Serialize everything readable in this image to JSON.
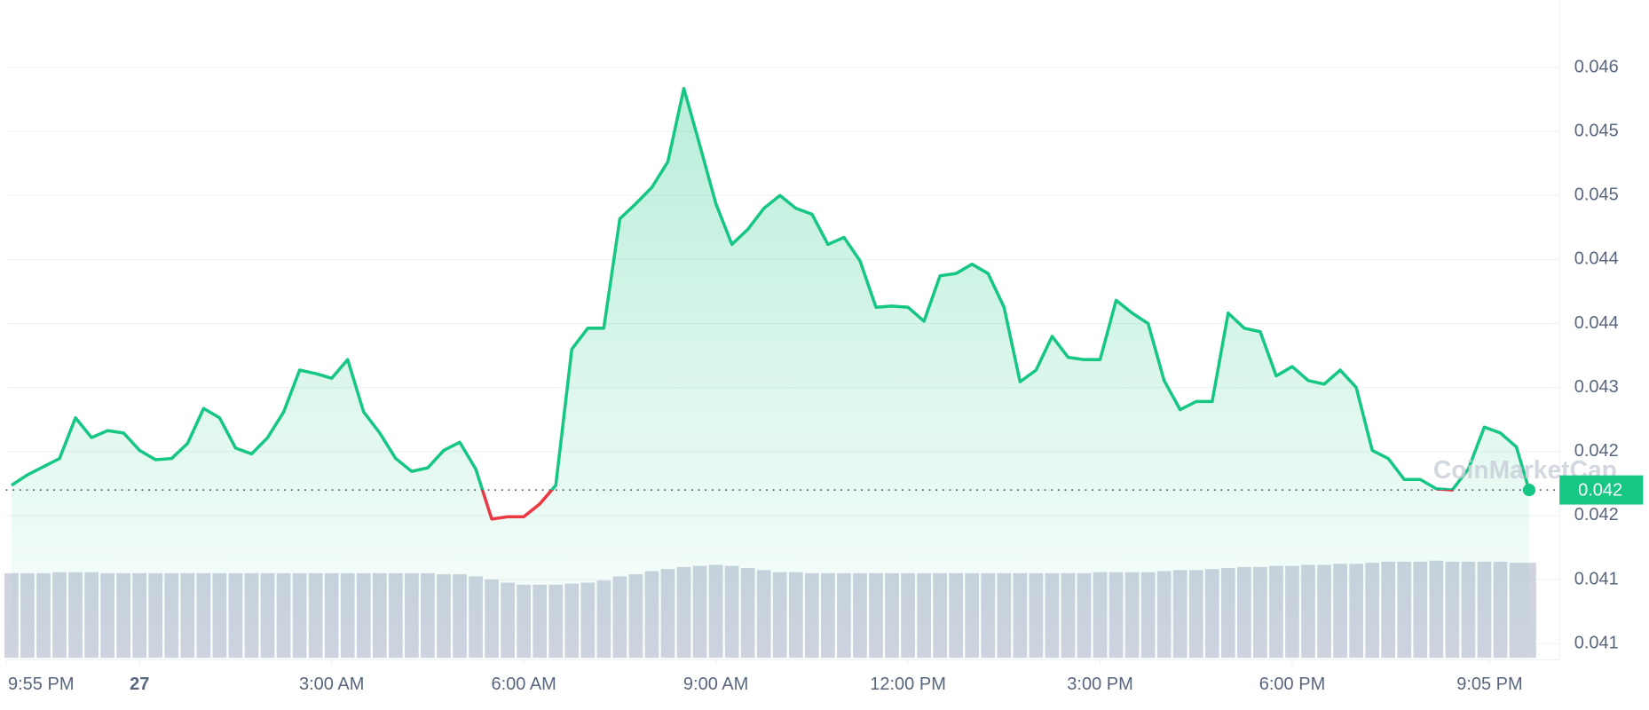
{
  "chart_data": {
    "type": "line",
    "watermark": "CoinMarketCap",
    "x": [
      -2,
      -1.75,
      -1.5,
      -1.25,
      -1,
      -0.75,
      -0.5,
      -0.25,
      0,
      0.25,
      0.5,
      0.75,
      1,
      1.25,
      1.5,
      1.75,
      2,
      2.25,
      2.5,
      2.75,
      3,
      3.25,
      3.5,
      3.75,
      4,
      4.25,
      4.5,
      4.75,
      5,
      5.25,
      5.5,
      5.75,
      6,
      6.25,
      6.5,
      6.75,
      7,
      7.25,
      7.5,
      7.75,
      8,
      8.25,
      8.5,
      8.75,
      9,
      9.25,
      9.5,
      9.75,
      10,
      10.25,
      10.5,
      10.75,
      11,
      11.25,
      11.5,
      11.75,
      12,
      12.25,
      12.5,
      12.75,
      13,
      13.25,
      13.5,
      13.75,
      14,
      14.25,
      14.5,
      14.75,
      15,
      15.25,
      15.5,
      15.75,
      16,
      16.25,
      16.5,
      16.75,
      17,
      17.25,
      17.5,
      17.75,
      18,
      18.25,
      18.5,
      18.75,
      19,
      19.25,
      19.5,
      19.75,
      20,
      20.25,
      20.5,
      20.75,
      21,
      21.25,
      21.5,
      21.7
    ],
    "series": [
      {
        "values": [
          0.04219,
          0.04228,
          0.04235,
          0.04242,
          0.04277,
          0.0426,
          0.04266,
          0.04264,
          0.04249,
          0.04241,
          0.04242,
          0.04255,
          0.04285,
          0.04277,
          0.04251,
          0.04246,
          0.0426,
          0.04282,
          0.04318,
          0.04315,
          0.04311,
          0.04327,
          0.04282,
          0.04264,
          0.04242,
          0.04231,
          0.04234,
          0.04249,
          0.04256,
          0.04233,
          0.0419,
          0.04192,
          0.04192,
          0.04203,
          0.04219,
          0.04336,
          0.04354,
          0.04354,
          0.04448,
          0.04461,
          0.04475,
          0.04497,
          0.0456,
          0.04511,
          0.04461,
          0.04426,
          0.04439,
          0.04457,
          0.04468,
          0.04457,
          0.04452,
          0.04426,
          0.04432,
          0.04412,
          0.04372,
          0.04373,
          0.04372,
          0.0436,
          0.04399,
          0.04401,
          0.04409,
          0.04401,
          0.04372,
          0.04308,
          0.04318,
          0.04347,
          0.04329,
          0.04327,
          0.04327,
          0.04378,
          0.04367,
          0.04358,
          0.04309,
          0.04284,
          0.04291,
          0.04291,
          0.04367,
          0.04354,
          0.04351,
          0.04313,
          0.04321,
          0.04309,
          0.04306,
          0.04318,
          0.04303,
          0.04249,
          0.04242,
          0.04224,
          0.04224,
          0.04216,
          0.04215,
          0.04233,
          0.04269,
          0.04264,
          0.04252,
          0.04215
        ]
      }
    ],
    "volume": [
      81,
      81,
      81,
      82,
      82,
      82,
      81,
      81,
      81,
      81,
      81,
      81,
      81,
      81,
      81,
      81,
      81,
      81,
      81,
      81,
      81,
      81,
      81,
      81,
      81,
      81,
      81,
      80,
      80,
      78,
      75,
      72,
      70,
      70,
      70,
      71,
      72,
      74,
      78,
      80,
      83,
      85,
      87,
      88,
      89,
      88,
      86,
      84,
      82,
      82,
      81,
      81,
      81,
      81,
      81,
      81,
      81,
      81,
      81,
      81,
      81,
      81,
      81,
      81,
      81,
      81,
      81,
      81,
      82,
      82,
      82,
      82,
      83,
      84,
      84,
      85,
      86,
      87,
      87,
      88,
      88,
      89,
      89,
      90,
      90,
      91,
      92,
      92,
      92,
      93,
      92,
      92,
      92,
      92,
      91,
      91
    ],
    "volume_ylim": [
      0,
      100
    ],
    "current_price": {
      "value": 0.04215,
      "label": "0.042"
    },
    "up_color": "#16c784",
    "down_color": "#ea3943",
    "volume_color": "#cfd3e0",
    "grid": true,
    "xlim": [
      -2.087,
      22.175
    ],
    "xticks": [
      {
        "value": -2.083,
        "label": "9:55 PM"
      },
      {
        "value": 0,
        "label": "27"
      },
      {
        "value": 3,
        "label": "3:00 AM"
      },
      {
        "value": 6,
        "label": "6:00 AM"
      },
      {
        "value": 9,
        "label": "9:00 AM"
      },
      {
        "value": 12,
        "label": "12:00 PM"
      },
      {
        "value": 15,
        "label": "3:00 PM"
      },
      {
        "value": 18,
        "label": "6:00 PM"
      },
      {
        "value": 21.083,
        "label": "9:05 PM"
      }
    ],
    "ylim": [
      0.04069,
      0.04636
    ],
    "yticks": [
      {
        "value": 0.04578,
        "label": "0.046"
      },
      {
        "value": 0.04523,
        "label": "0.045"
      },
      {
        "value": 0.04468,
        "label": "0.045"
      },
      {
        "value": 0.04413,
        "label": "0.044"
      },
      {
        "value": 0.04358,
        "label": "0.044"
      },
      {
        "value": 0.04303,
        "label": "0.043"
      },
      {
        "value": 0.04248,
        "label": "0.042"
      },
      {
        "value": 0.04193,
        "label": "0.042"
      },
      {
        "value": 0.04138,
        "label": "0.041"
      },
      {
        "value": 0.04083,
        "label": "0.041"
      }
    ]
  }
}
